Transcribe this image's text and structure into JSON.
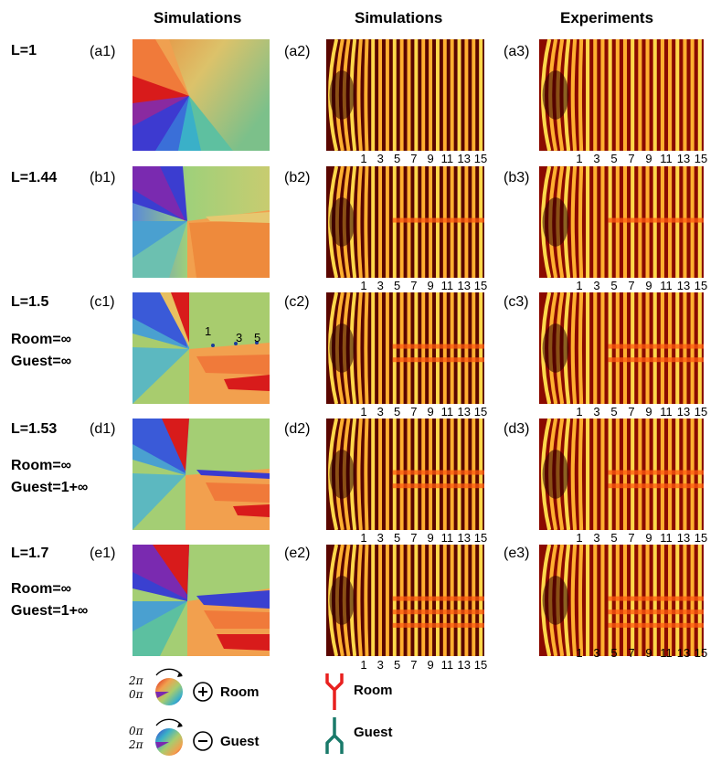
{
  "column_headers": [
    "Simulations",
    "Simulations",
    "Experiments"
  ],
  "rows": [
    {
      "L": "L=1",
      "room": "",
      "guest": "",
      "panels": [
        "(a1)",
        "(a2)",
        "(a3)"
      ],
      "defects": 0,
      "dislocation_labels": []
    },
    {
      "L": "L=1.44",
      "room": "",
      "guest": "",
      "panels": [
        "(b1)",
        "(b2)",
        "(b3)"
      ],
      "defects": 1,
      "dislocation_labels": []
    },
    {
      "L": "L=1.5",
      "room": "Room=∞",
      "guest": "Guest=∞",
      "panels": [
        "(c1)",
        "(c2)",
        "(c3)"
      ],
      "defects": 2,
      "dislocation_labels": [
        "1",
        "3",
        "5"
      ]
    },
    {
      "L": "L=1.53",
      "room": "Room=∞",
      "guest": "Guest=1+∞",
      "panels": [
        "(d1)",
        "(d2)",
        "(d3)"
      ],
      "defects": 2,
      "dislocation_labels": []
    },
    {
      "L": "L=1.7",
      "room": "Room=∞",
      "guest": "Guest=1+∞",
      "panels": [
        "(e1)",
        "(e2)",
        "(e3)"
      ],
      "defects": 3,
      "dislocation_labels": []
    }
  ],
  "fringe_ticks": [
    "1",
    "3",
    "5",
    "7",
    "9",
    "11",
    "13",
    "15"
  ],
  "legend": {
    "room": {
      "top": "2π",
      "bottom": "0π",
      "sign": "+",
      "label": "Room"
    },
    "guest": {
      "top": "0π",
      "bottom": "2π",
      "sign": "−",
      "label": "Guest"
    },
    "fork_room_label": "Room",
    "fork_guest_label": "Guest",
    "fork_room_color": "#e8201f",
    "fork_guest_color": "#1a7a6a"
  }
}
